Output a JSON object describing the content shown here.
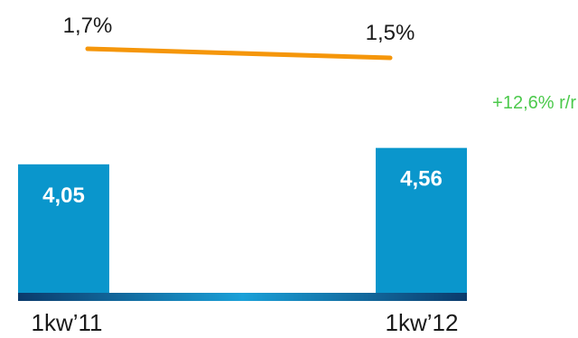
{
  "chart_data": {
    "type": "bar",
    "categories": [
      "1kw’11",
      "1kw’12"
    ],
    "values": [
      4.05,
      4.56
    ],
    "value_labels": [
      "4,05",
      "4,56"
    ],
    "line_series": {
      "values": [
        1.7,
        1.5
      ],
      "labels": [
        "1,7%",
        "1,5%"
      ]
    },
    "change_annotation": "+12,6% r/r",
    "colors": {
      "bar": "#0a96cc",
      "line": "#f5960a",
      "change": "#4cc94c",
      "axis_dark": "#0b3a6b",
      "axis_light": "#1aa0d8"
    },
    "title": "",
    "xlabel": "",
    "ylabel": ""
  }
}
